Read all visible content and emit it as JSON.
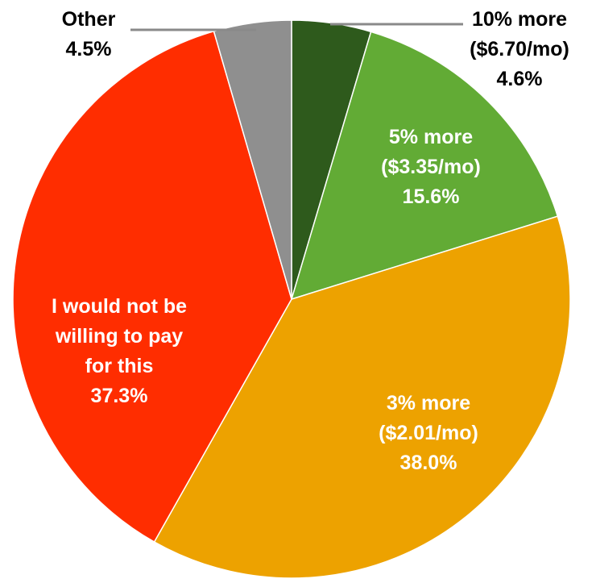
{
  "chart_data": {
    "type": "pie",
    "title": "",
    "slices": [
      {
        "label_lines": [
          "10% more",
          "($6.70/mo)"
        ],
        "pct_label": "4.6%",
        "value": 4.6,
        "color": "#2e5a1c",
        "label_color": "#000000"
      },
      {
        "label_lines": [
          "5% more",
          "($3.35/mo)"
        ],
        "pct_label": "15.6%",
        "value": 15.6,
        "color": "#62ab35",
        "label_color": "#ffffff"
      },
      {
        "label_lines": [
          "3% more",
          "($2.01/mo)"
        ],
        "pct_label": "38.0%",
        "value": 38.0,
        "color": "#eda200",
        "label_color": "#ffffff"
      },
      {
        "label_lines": [
          "I would not be",
          "willing to pay",
          "for this"
        ],
        "pct_label": "37.3%",
        "value": 37.3,
        "color": "#ff2d00",
        "label_color": "#ffffff"
      },
      {
        "label_lines": [
          "Other"
        ],
        "pct_label": "4.5%",
        "value": 4.5,
        "color": "#8f8f8f",
        "label_color": "#000000"
      }
    ]
  }
}
